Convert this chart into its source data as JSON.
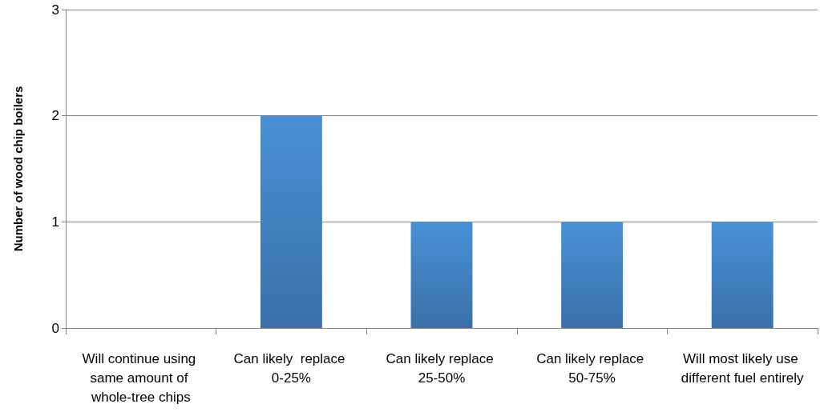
{
  "chart_data": {
    "type": "bar",
    "ylabel": "Number of wood chip boilers",
    "categories": [
      "Will continue using same amount of whole-tree chips",
      "Can likely  replace 0-25%",
      "Can likely replace 25-50%",
      "Can likely replace 50-75%",
      "Will most likely use different fuel entirely"
    ],
    "values": [
      0,
      2,
      1,
      1,
      1
    ],
    "color": "#4a90d6",
    "ylim": [
      0,
      3
    ],
    "yticks": [
      0,
      1,
      2,
      3
    ],
    "grid": "y"
  }
}
